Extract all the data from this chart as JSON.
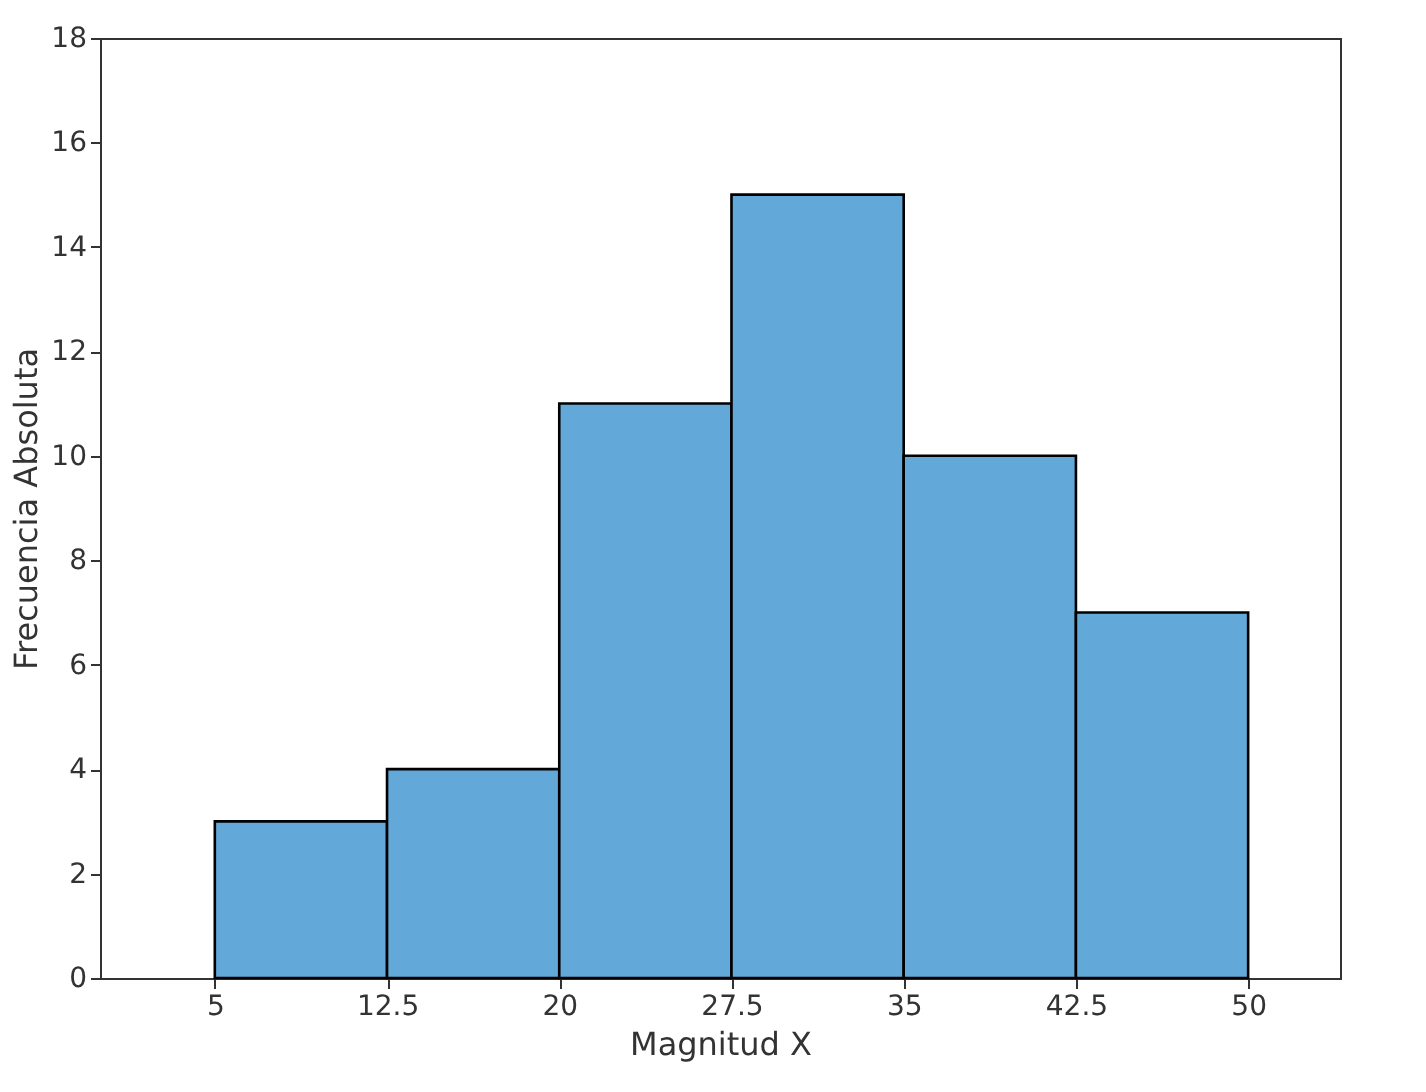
{
  "chart_data": {
    "type": "histogram",
    "xlabel": "Magnitud X",
    "ylabel": "Frecuencia Absoluta",
    "bins": [
      5,
      12.5,
      20,
      27.5,
      35,
      42.5,
      50
    ],
    "values": [
      3,
      4,
      11,
      15,
      10,
      7
    ],
    "color": "#62a8d8",
    "xlim": [
      0,
      54
    ],
    "xticks": [
      5,
      12.5,
      20,
      27.5,
      35,
      42.5,
      50
    ],
    "ylim": [
      0,
      18
    ],
    "yticks": [
      0,
      2,
      4,
      6,
      8,
      10,
      12,
      14,
      16,
      18
    ],
    "grid": false,
    "legend": false
  }
}
